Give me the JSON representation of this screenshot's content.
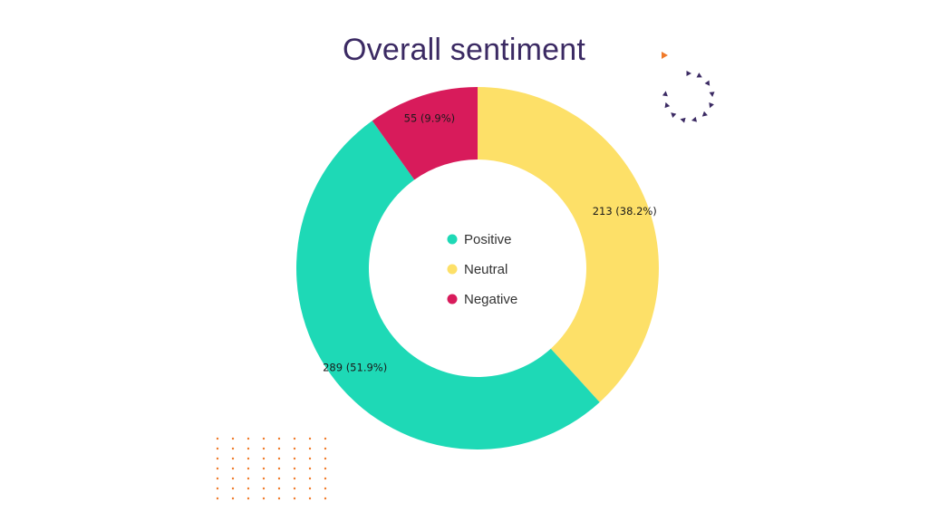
{
  "chart_data": {
    "type": "pie",
    "title": "Overall sentiment",
    "categories": [
      "Positive",
      "Neutral",
      "Negative"
    ],
    "values": [
      289,
      213,
      55
    ],
    "labels": [
      "289 (51.9%)",
      "213 (38.2%)",
      "55 (9.9%)"
    ],
    "colors": [
      "#1ed9b6",
      "#fde068",
      "#d81b5b"
    ],
    "legend": [
      "Positive",
      "Neutral",
      "Negative"
    ],
    "legend_placement": "center",
    "style": "donut"
  },
  "decor": {
    "accent_orange": "#f07a2a",
    "accent_purple": "#3b2a63"
  }
}
